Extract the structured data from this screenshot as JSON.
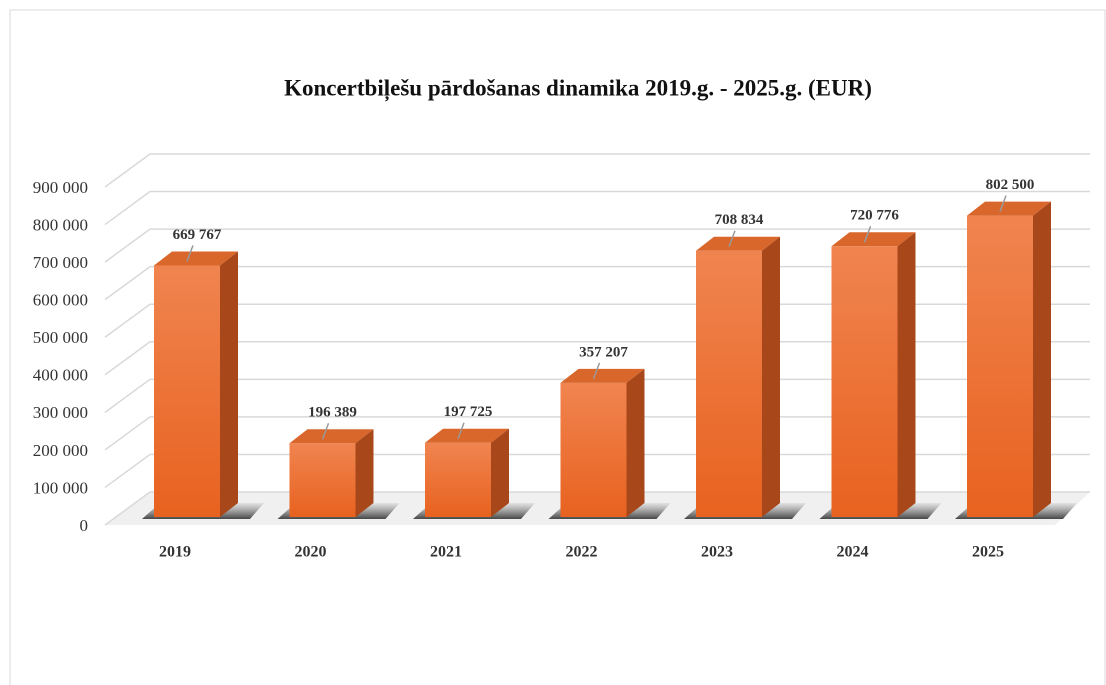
{
  "chart_data": {
    "type": "bar3d",
    "title": "Koncertbiļešu pārdošanas dinamika  2019.g. - 2025.g. (EUR)",
    "categories": [
      "2019",
      "2020",
      "2021",
      "2022",
      "2023",
      "2024",
      "2025"
    ],
    "values": [
      669767,
      196389,
      197725,
      357207,
      708834,
      720776,
      802500
    ],
    "value_labels": [
      "669 767",
      "196 389",
      "197 725",
      "357 207",
      "708 834",
      "720 776",
      "802 500"
    ],
    "color": "#f07433",
    "ylim": [
      0,
      900000
    ],
    "yticks": [
      0,
      {
        "value": 100000,
        "label": "100 000"
      },
      {
        "value": 200000,
        "label": "200 000"
      },
      {
        "value": 300000,
        "label": "300 000"
      },
      {
        "value": 400000,
        "label": "400 000"
      },
      {
        "value": 500000,
        "label": "500 000"
      },
      {
        "value": 600000,
        "label": "600 000"
      },
      {
        "value": 700000,
        "label": "700 000"
      },
      {
        "value": 800000,
        "label": "800 000"
      },
      {
        "value": 900000,
        "label": "900 000"
      }
    ],
    "grid": true
  }
}
